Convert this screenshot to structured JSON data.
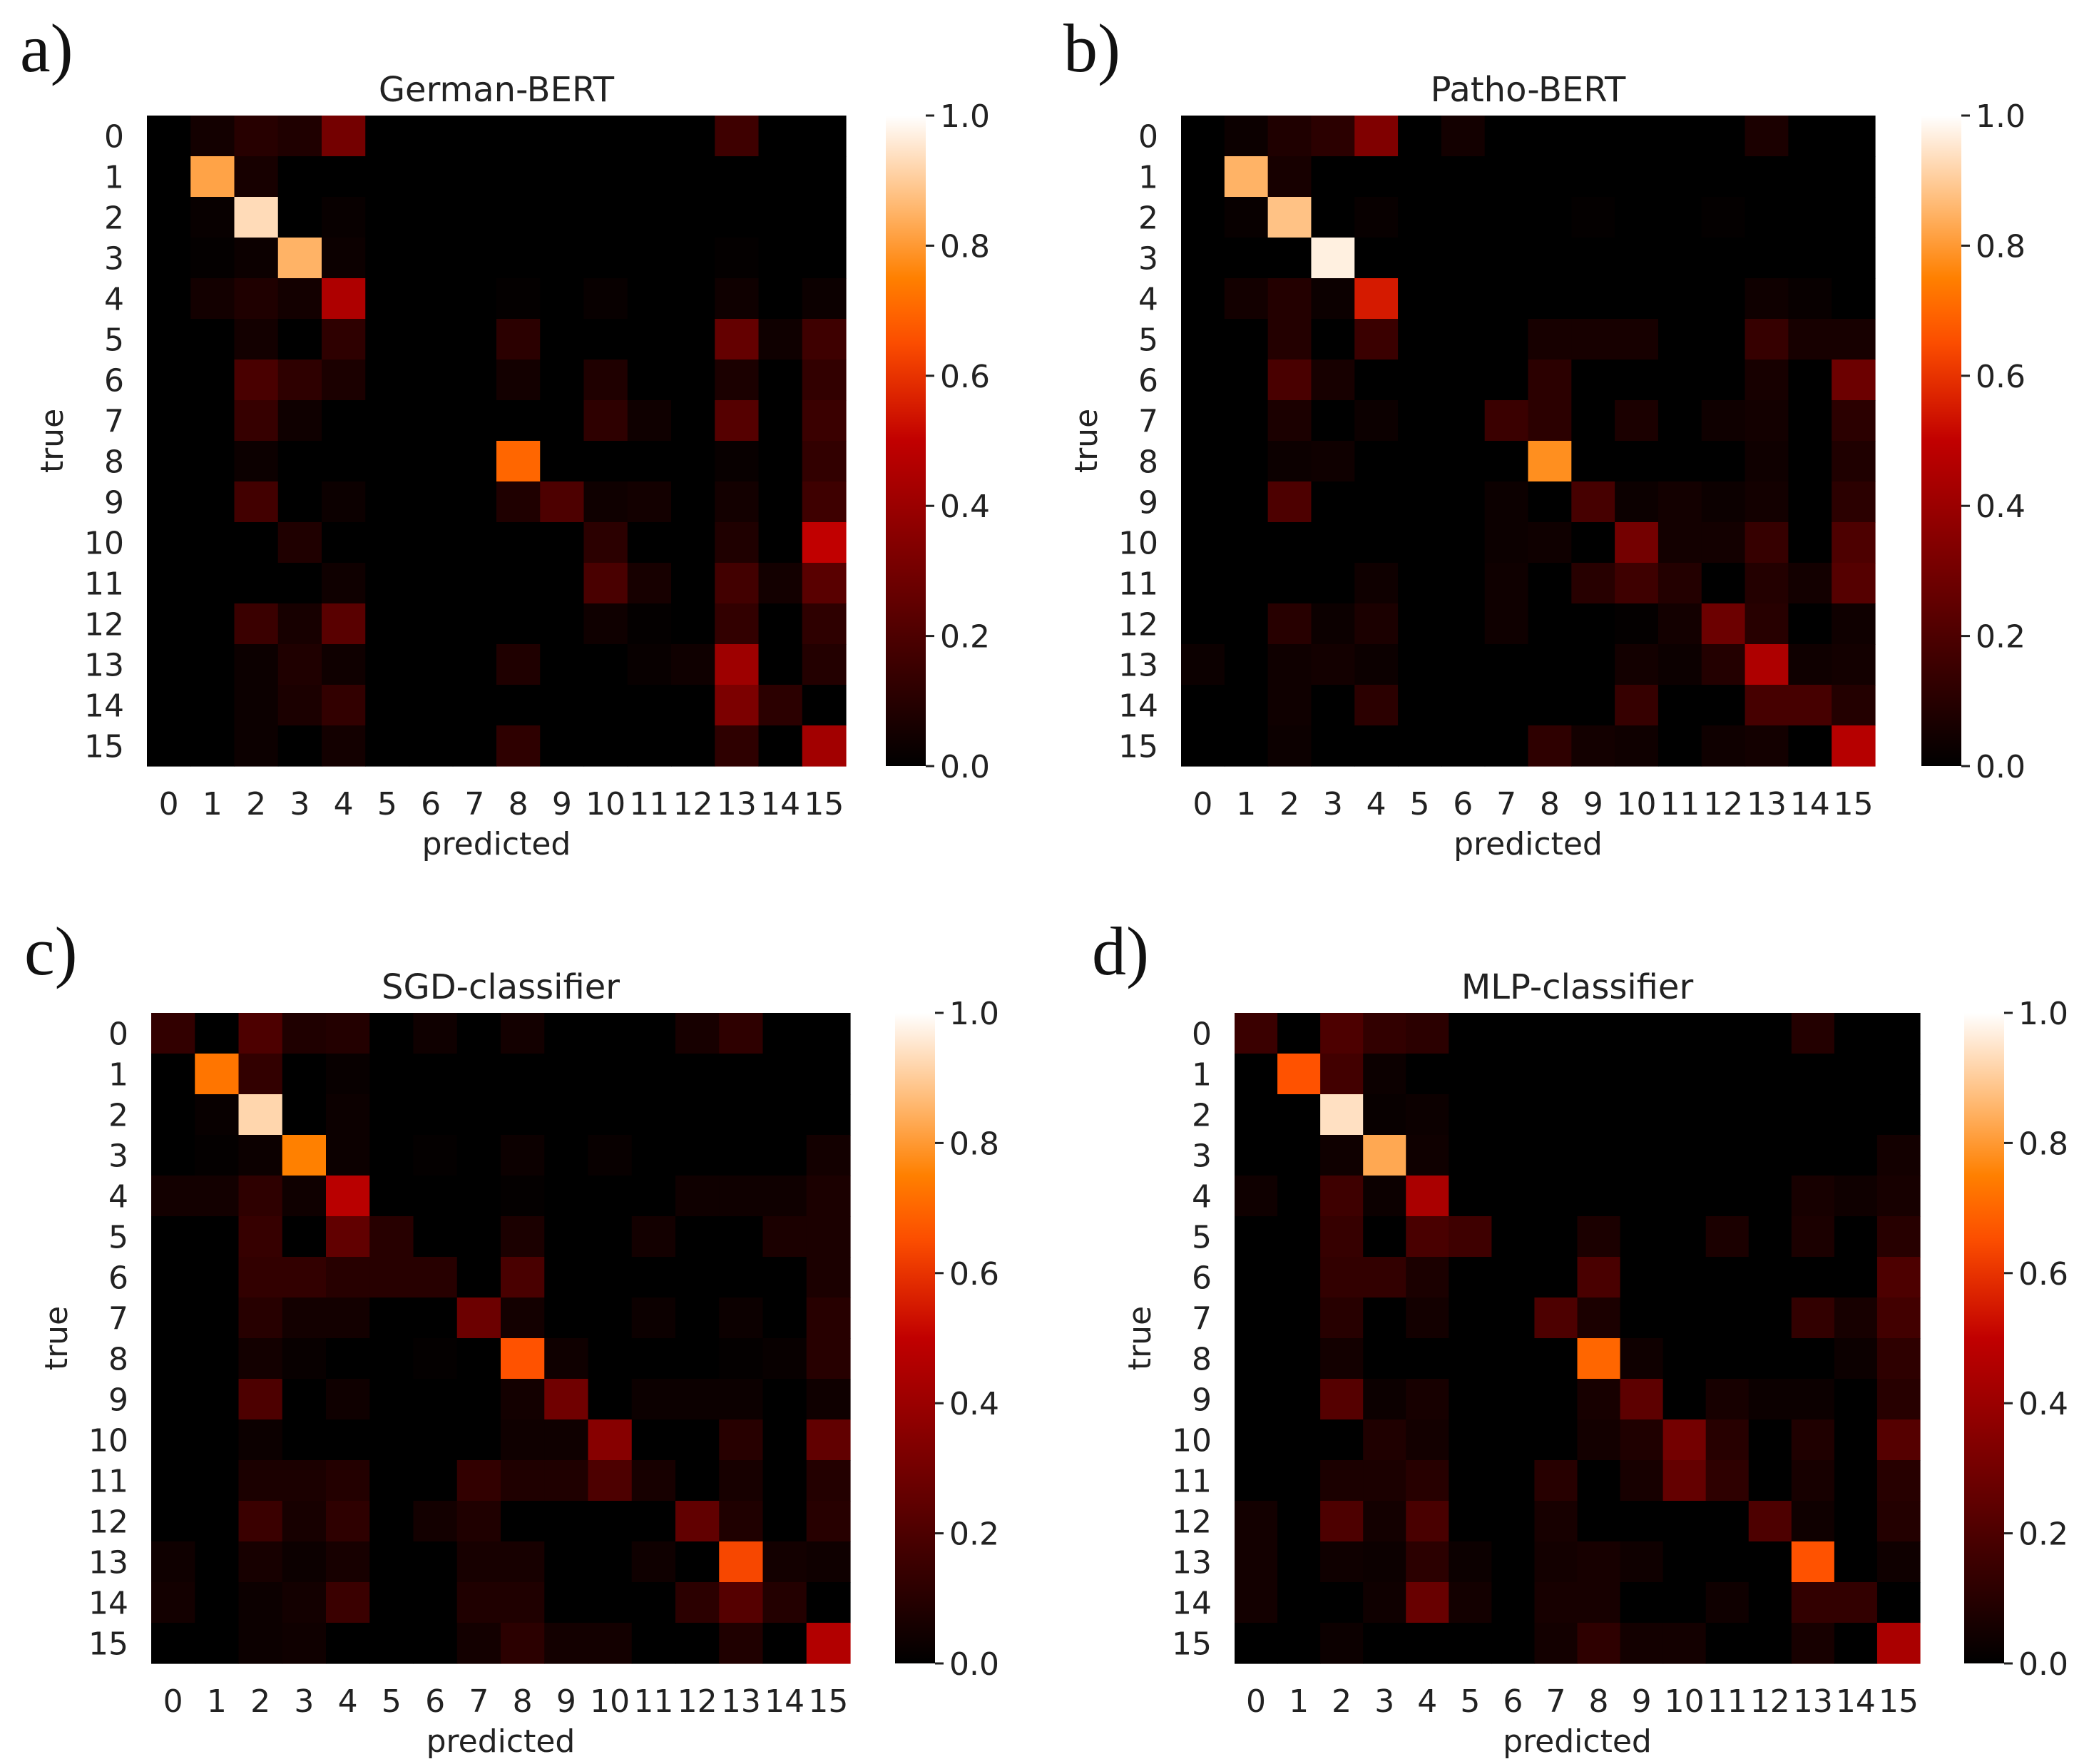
{
  "chart_data": [
    {
      "type": "heatmap",
      "panel_label": "a)",
      "title": "German-BERT",
      "xlabel": "predicted",
      "ylabel": "true",
      "categories": [
        "0",
        "1",
        "2",
        "3",
        "4",
        "5",
        "6",
        "7",
        "8",
        "9",
        "10",
        "11",
        "12",
        "13",
        "14",
        "15"
      ],
      "colorbar": {
        "ticks": [
          "0.0",
          "0.2",
          "0.4",
          "0.6",
          "0.8",
          "1.0"
        ],
        "range": [
          0,
          1
        ],
        "colormap": "gist_heat"
      },
      "values": [
        [
          0,
          0.05,
          0.1,
          0.08,
          0.3,
          0,
          0,
          0,
          0,
          0,
          0,
          0,
          0,
          0.16,
          0,
          0
        ],
        [
          0,
          0.82,
          0.06,
          0,
          0,
          0,
          0,
          0,
          0,
          0,
          0,
          0,
          0,
          0,
          0,
          0
        ],
        [
          0,
          0.02,
          0.93,
          0,
          0.02,
          0,
          0,
          0,
          0,
          0,
          0,
          0,
          0,
          0,
          0,
          0
        ],
        [
          0,
          0.01,
          0.03,
          0.85,
          0.03,
          0,
          0,
          0,
          0,
          0,
          0,
          0,
          0,
          0.01,
          0,
          0
        ],
        [
          0,
          0.05,
          0.08,
          0.05,
          0.45,
          0,
          0,
          0,
          0.01,
          0,
          0.02,
          0,
          0,
          0.04,
          0,
          0.03
        ],
        [
          0,
          0,
          0.05,
          0,
          0.12,
          0,
          0,
          0,
          0.11,
          0,
          0,
          0,
          0,
          0.26,
          0.04,
          0.16
        ],
        [
          0,
          0,
          0.19,
          0.12,
          0.07,
          0,
          0,
          0,
          0.05,
          0,
          0.08,
          0,
          0,
          0.07,
          0,
          0.13
        ],
        [
          0,
          0,
          0.14,
          0.04,
          0,
          0,
          0,
          0,
          0,
          0,
          0.12,
          0.04,
          0,
          0.22,
          0,
          0.15
        ],
        [
          0,
          0,
          0.03,
          0,
          0,
          0,
          0,
          0,
          0.7,
          0,
          0,
          0,
          0,
          0.02,
          0,
          0.13
        ],
        [
          0,
          0,
          0.17,
          0,
          0.03,
          0,
          0,
          0,
          0.08,
          0.2,
          0.04,
          0.05,
          0,
          0.05,
          0,
          0.16
        ],
        [
          0,
          0,
          0,
          0.08,
          0,
          0,
          0,
          0,
          0,
          0,
          0.11,
          0,
          0,
          0.08,
          0,
          0.5
        ],
        [
          0,
          0,
          0,
          0,
          0.04,
          0,
          0,
          0,
          0,
          0,
          0.19,
          0.06,
          0,
          0.17,
          0.05,
          0.23
        ],
        [
          0,
          0,
          0.15,
          0.06,
          0.23,
          0,
          0,
          0,
          0,
          0,
          0.04,
          0.01,
          0,
          0.13,
          0,
          0.12
        ],
        [
          0,
          0,
          0.03,
          0.08,
          0.04,
          0,
          0,
          0,
          0.08,
          0,
          0,
          0.02,
          0.04,
          0.41,
          0,
          0.09
        ],
        [
          0,
          0,
          0.03,
          0.07,
          0.13,
          0,
          0,
          0,
          0,
          0,
          0,
          0,
          0,
          0.32,
          0.11,
          0
        ],
        [
          0,
          0,
          0.03,
          0,
          0.05,
          0,
          0,
          0,
          0.12,
          0,
          0,
          0,
          0,
          0.12,
          0,
          0.42
        ]
      ]
    },
    {
      "type": "heatmap",
      "panel_label": "b)",
      "title": "Patho-BERT",
      "xlabel": "predicted",
      "ylabel": "true",
      "categories": [
        "0",
        "1",
        "2",
        "3",
        "4",
        "5",
        "6",
        "7",
        "8",
        "9",
        "10",
        "11",
        "12",
        "13",
        "14",
        "15"
      ],
      "colorbar": {
        "ticks": [
          "0.0",
          "0.2",
          "0.4",
          "0.6",
          "0.8",
          "1.0"
        ],
        "range": [
          0,
          1
        ],
        "colormap": "gist_heat"
      },
      "values": [
        [
          0,
          0.03,
          0.08,
          0.11,
          0.33,
          0,
          0.05,
          0,
          0,
          0,
          0,
          0,
          0,
          0.07,
          0,
          0
        ],
        [
          0,
          0.85,
          0.06,
          0,
          0,
          0,
          0,
          0,
          0,
          0,
          0,
          0,
          0,
          0,
          0,
          0
        ],
        [
          0,
          0.02,
          0.88,
          0,
          0.02,
          0,
          0,
          0,
          0,
          0.01,
          0,
          0,
          0.01,
          0,
          0,
          0
        ],
        [
          0,
          0,
          0,
          0.97,
          0,
          0,
          0,
          0,
          0,
          0,
          0,
          0,
          0,
          0,
          0,
          0
        ],
        [
          0,
          0.05,
          0.09,
          0.03,
          0.55,
          0,
          0,
          0,
          0,
          0,
          0,
          0,
          0,
          0.04,
          0.02,
          0
        ],
        [
          0,
          0,
          0.09,
          0,
          0.15,
          0,
          0,
          0,
          0.06,
          0.06,
          0.06,
          0,
          0,
          0.14,
          0.06,
          0.06
        ],
        [
          0,
          0,
          0.19,
          0.06,
          0,
          0,
          0,
          0,
          0.11,
          0,
          0,
          0,
          0,
          0.06,
          0,
          0.28
        ],
        [
          0,
          0,
          0.07,
          0,
          0.03,
          0,
          0,
          0.15,
          0.11,
          0,
          0.07,
          0,
          0.04,
          0.05,
          0,
          0.11
        ],
        [
          0,
          0,
          0.03,
          0.04,
          0,
          0,
          0,
          0,
          0.78,
          0,
          0,
          0,
          0,
          0.04,
          0,
          0.08
        ],
        [
          0,
          0,
          0.2,
          0,
          0,
          0,
          0,
          0.03,
          0,
          0.18,
          0.03,
          0.05,
          0.03,
          0.05,
          0,
          0.11
        ],
        [
          0,
          0,
          0,
          0,
          0,
          0,
          0,
          0.03,
          0.04,
          0,
          0.3,
          0.05,
          0.05,
          0.14,
          0,
          0.2
        ],
        [
          0,
          0,
          0,
          0,
          0.04,
          0,
          0,
          0.04,
          0,
          0.1,
          0.16,
          0.09,
          0,
          0.09,
          0.05,
          0.22
        ],
        [
          0,
          0,
          0.1,
          0.03,
          0.07,
          0,
          0,
          0.04,
          0,
          0,
          0.01,
          0.05,
          0.28,
          0.1,
          0,
          0.04
        ],
        [
          0.03,
          0,
          0.04,
          0.05,
          0.03,
          0,
          0,
          0,
          0,
          0,
          0.05,
          0.03,
          0.09,
          0.45,
          0.04,
          0.05
        ],
        [
          0,
          0,
          0.04,
          0,
          0.11,
          0,
          0,
          0,
          0,
          0,
          0.14,
          0,
          0,
          0.18,
          0.18,
          0.09
        ],
        [
          0,
          0,
          0.03,
          0,
          0,
          0,
          0,
          0,
          0.12,
          0.05,
          0.04,
          0,
          0.04,
          0.05,
          0,
          0.47
        ]
      ]
    },
    {
      "type": "heatmap",
      "panel_label": "c)",
      "title": "SGD-classifier",
      "xlabel": "predicted",
      "ylabel": "true",
      "categories": [
        "0",
        "1",
        "2",
        "3",
        "4",
        "5",
        "6",
        "7",
        "8",
        "9",
        "10",
        "11",
        "12",
        "13",
        "14",
        "15"
      ],
      "colorbar": {
        "ticks": [
          "0.0",
          "0.2",
          "0.4",
          "0.6",
          "0.8",
          "1.0"
        ],
        "range": [
          0,
          1
        ],
        "colormap": "gist_heat"
      },
      "values": [
        [
          0.13,
          0,
          0.2,
          0.08,
          0.09,
          0,
          0.04,
          0,
          0.05,
          0,
          0,
          0,
          0.06,
          0.12,
          0,
          0
        ],
        [
          0,
          0.73,
          0.13,
          0,
          0.02,
          0,
          0,
          0,
          0,
          0,
          0,
          0,
          0,
          0,
          0,
          0
        ],
        [
          0,
          0.02,
          0.92,
          0,
          0.03,
          0,
          0,
          0,
          0,
          0,
          0,
          0,
          0,
          0,
          0,
          0
        ],
        [
          0,
          0.01,
          0.03,
          0.75,
          0.03,
          0,
          0.01,
          0,
          0.03,
          0,
          0.02,
          0,
          0,
          0,
          0,
          0.05
        ],
        [
          0.05,
          0.05,
          0.12,
          0.04,
          0.48,
          0,
          0,
          0,
          0.01,
          0,
          0,
          0,
          0.04,
          0.04,
          0.04,
          0.07
        ],
        [
          0,
          0,
          0.14,
          0,
          0.25,
          0.1,
          0,
          0,
          0.07,
          0,
          0,
          0.05,
          0,
          0,
          0.07,
          0.07
        ],
        [
          0,
          0,
          0.13,
          0.13,
          0.1,
          0.1,
          0.1,
          0,
          0.19,
          0,
          0,
          0,
          0,
          0,
          0,
          0.07
        ],
        [
          0,
          0,
          0.1,
          0.05,
          0.05,
          0,
          0,
          0.28,
          0.05,
          0,
          0,
          0.03,
          0,
          0.03,
          0,
          0.1
        ],
        [
          0,
          0,
          0.05,
          0.02,
          0,
          0,
          0.01,
          0,
          0.66,
          0.04,
          0,
          0,
          0,
          0.01,
          0.02,
          0.1
        ],
        [
          0,
          0,
          0.2,
          0,
          0.04,
          0,
          0,
          0,
          0.05,
          0.29,
          0,
          0.03,
          0.03,
          0.03,
          0,
          0.04
        ],
        [
          0,
          0,
          0.03,
          0,
          0,
          0,
          0,
          0,
          0.04,
          0.04,
          0.35,
          0,
          0,
          0.1,
          0,
          0.25
        ],
        [
          0,
          0,
          0.07,
          0.07,
          0.09,
          0,
          0,
          0.13,
          0.08,
          0.08,
          0.2,
          0.06,
          0,
          0.06,
          0,
          0.09
        ],
        [
          0,
          0,
          0.15,
          0.06,
          0.12,
          0,
          0.05,
          0.08,
          0,
          0,
          0,
          0,
          0.25,
          0.08,
          0,
          0.1
        ],
        [
          0.04,
          0,
          0.06,
          0.03,
          0.06,
          0,
          0,
          0.06,
          0.06,
          0,
          0,
          0.04,
          0,
          0.64,
          0.05,
          0.04
        ],
        [
          0.05,
          0,
          0.03,
          0.05,
          0.15,
          0,
          0,
          0.08,
          0.08,
          0,
          0,
          0,
          0.11,
          0.22,
          0.09,
          0
        ],
        [
          0,
          0,
          0.03,
          0.04,
          0,
          0,
          0,
          0.05,
          0.11,
          0.05,
          0.05,
          0,
          0,
          0.08,
          0,
          0.46
        ]
      ]
    },
    {
      "type": "heatmap",
      "panel_label": "d)",
      "title": "MLP-classifier",
      "xlabel": "predicted",
      "ylabel": "true",
      "categories": [
        "0",
        "1",
        "2",
        "3",
        "4",
        "5",
        "6",
        "7",
        "8",
        "9",
        "10",
        "11",
        "12",
        "13",
        "14",
        "15"
      ],
      "colorbar": {
        "ticks": [
          "0.0",
          "0.2",
          "0.4",
          "0.6",
          "0.8",
          "1.0"
        ],
        "range": [
          0,
          1
        ],
        "colormap": "gist_heat"
      },
      "values": [
        [
          0.15,
          0,
          0.2,
          0.13,
          0.11,
          0,
          0,
          0,
          0,
          0,
          0,
          0,
          0,
          0.09,
          0,
          0
        ],
        [
          0,
          0.66,
          0.17,
          0.03,
          0,
          0,
          0,
          0,
          0,
          0,
          0,
          0,
          0,
          0,
          0,
          0
        ],
        [
          0,
          0,
          0.94,
          0.02,
          0.03,
          0,
          0,
          0,
          0,
          0,
          0,
          0,
          0,
          0,
          0,
          0
        ],
        [
          0,
          0,
          0.04,
          0.83,
          0.04,
          0,
          0,
          0,
          0,
          0,
          0,
          0,
          0,
          0,
          0,
          0.05
        ],
        [
          0.04,
          0,
          0.16,
          0.03,
          0.44,
          0,
          0,
          0,
          0,
          0,
          0,
          0,
          0,
          0.06,
          0.04,
          0.06
        ],
        [
          0,
          0,
          0.14,
          0,
          0.19,
          0.16,
          0,
          0,
          0.07,
          0,
          0,
          0.07,
          0,
          0.07,
          0,
          0.1
        ],
        [
          0,
          0,
          0.13,
          0.13,
          0.07,
          0,
          0,
          0,
          0.19,
          0,
          0,
          0,
          0,
          0,
          0,
          0.2
        ],
        [
          0,
          0,
          0.1,
          0,
          0.05,
          0,
          0,
          0.2,
          0.07,
          0,
          0,
          0,
          0,
          0.13,
          0.06,
          0.17
        ],
        [
          0,
          0,
          0.05,
          0,
          0,
          0,
          0,
          0,
          0.7,
          0.04,
          0,
          0,
          0,
          0,
          0.03,
          0.12
        ],
        [
          0,
          0,
          0.22,
          0.03,
          0.06,
          0,
          0,
          0,
          0.06,
          0.24,
          0,
          0.06,
          0.03,
          0.03,
          0,
          0.1
        ],
        [
          0,
          0,
          0,
          0.08,
          0.05,
          0,
          0,
          0,
          0.05,
          0.08,
          0.3,
          0.1,
          0,
          0.08,
          0,
          0.22
        ],
        [
          0,
          0,
          0.07,
          0.07,
          0.1,
          0,
          0,
          0.1,
          0,
          0.06,
          0.26,
          0.12,
          0,
          0.06,
          0,
          0.1
        ],
        [
          0.05,
          0,
          0.2,
          0.05,
          0.19,
          0,
          0,
          0.06,
          0,
          0,
          0,
          0,
          0.2,
          0.04,
          0,
          0.09
        ],
        [
          0.05,
          0,
          0.04,
          0.03,
          0.11,
          0.03,
          0,
          0.05,
          0.06,
          0.04,
          0,
          0,
          0,
          0.66,
          0,
          0.04
        ],
        [
          0.05,
          0,
          0,
          0.04,
          0.27,
          0.05,
          0,
          0.06,
          0.06,
          0,
          0,
          0.04,
          0,
          0.13,
          0.13,
          0
        ],
        [
          0,
          0,
          0.03,
          0,
          0,
          0,
          0,
          0.05,
          0.12,
          0.05,
          0.05,
          0,
          0,
          0.06,
          0,
          0.44
        ]
      ]
    }
  ]
}
